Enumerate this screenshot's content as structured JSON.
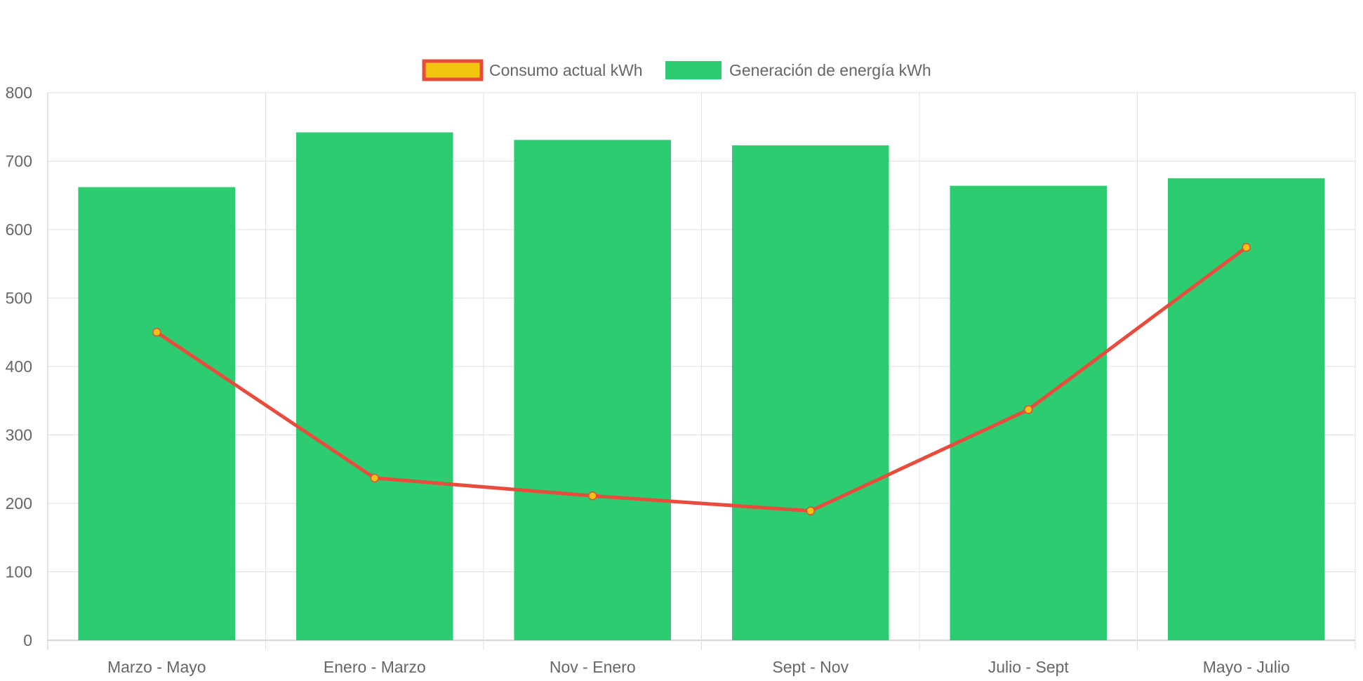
{
  "chart_data": {
    "type": "bar",
    "title": "",
    "xlabel": "",
    "ylabel": "",
    "categories": [
      "Marzo - Mayo",
      "Enero - Marzo",
      "Nov - Enero",
      "Sept - Nov",
      "Julio - Sept",
      "Mayo - Julio"
    ],
    "ylim": [
      0,
      800
    ],
    "yticks": [
      0,
      100,
      200,
      300,
      400,
      500,
      600,
      700,
      800
    ],
    "grid": true,
    "legend_position": "top-center",
    "series": [
      {
        "name": "Consumo actual kWh",
        "type": "line",
        "values": [
          450,
          237,
          211,
          189,
          337,
          574
        ],
        "line_color": "#e74c3c",
        "point_color": "#f1c40f"
      },
      {
        "name": "Generación de energía kWh",
        "type": "bar",
        "values": [
          662,
          742,
          731,
          723,
          664,
          675
        ],
        "color": "#2ecc71"
      }
    ]
  }
}
